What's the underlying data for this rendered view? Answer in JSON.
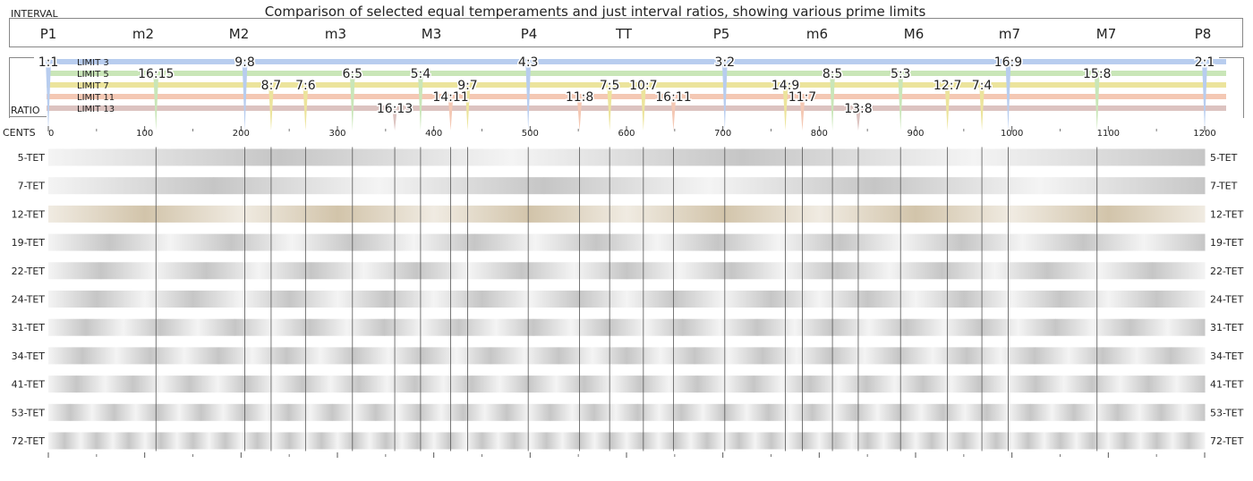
{
  "chart_data": {
    "type": "chart",
    "title": "Comparison of selected equal temperaments and just interval ratios, showing various prime limits",
    "interval_header": "INTERVAL",
    "ratio_header": "RATIO",
    "cents_header": "CENTS",
    "x_range": [
      0,
      1200
    ],
    "cents_ticks": [
      0,
      100,
      200,
      300,
      400,
      500,
      600,
      700,
      800,
      900,
      1000,
      1100,
      1200
    ],
    "intervals": [
      {
        "label": "P1",
        "cents": 0
      },
      {
        "label": "m2",
        "cents": 100
      },
      {
        "label": "M2",
        "cents": 200
      },
      {
        "label": "m3",
        "cents": 300
      },
      {
        "label": "M3",
        "cents": 400
      },
      {
        "label": "P4",
        "cents": 500
      },
      {
        "label": "TT",
        "cents": 600
      },
      {
        "label": "P5",
        "cents": 700
      },
      {
        "label": "m6",
        "cents": 800
      },
      {
        "label": "M6",
        "cents": 900
      },
      {
        "label": "m7",
        "cents": 1000
      },
      {
        "label": "M7",
        "cents": 1100
      },
      {
        "label": "P8",
        "cents": 1200
      }
    ],
    "limits": [
      {
        "name": "LIMIT 3",
        "color": "#b8cdef"
      },
      {
        "name": "LIMIT 5",
        "color": "#c9e6b8"
      },
      {
        "name": "LIMIT 7",
        "color": "#ece49c"
      },
      {
        "name": "LIMIT 11",
        "color": "#f4c8b4"
      },
      {
        "name": "LIMIT 13",
        "color": "#dcc3c0"
      }
    ],
    "ratios": [
      {
        "label": "1:1",
        "cents": 0,
        "limit": 0
      },
      {
        "label": "9:8",
        "cents": 203.9,
        "limit": 0
      },
      {
        "label": "4:3",
        "cents": 498.0,
        "limit": 0
      },
      {
        "label": "3:2",
        "cents": 702.0,
        "limit": 0
      },
      {
        "label": "16:9",
        "cents": 996.1,
        "limit": 0
      },
      {
        "label": "2:1",
        "cents": 1200,
        "limit": 0
      },
      {
        "label": "16:15",
        "cents": 111.7,
        "limit": 1
      },
      {
        "label": "6:5",
        "cents": 315.6,
        "limit": 1
      },
      {
        "label": "5:4",
        "cents": 386.3,
        "limit": 1
      },
      {
        "label": "8:5",
        "cents": 813.7,
        "limit": 1
      },
      {
        "label": "5:3",
        "cents": 884.4,
        "limit": 1
      },
      {
        "label": "15:8",
        "cents": 1088.3,
        "limit": 1
      },
      {
        "label": "8:7",
        "cents": 231.2,
        "limit": 2
      },
      {
        "label": "7:6",
        "cents": 266.9,
        "limit": 2
      },
      {
        "label": "9:7",
        "cents": 435.1,
        "limit": 2
      },
      {
        "label": "7:5",
        "cents": 582.5,
        "limit": 2
      },
      {
        "label": "10:7",
        "cents": 617.5,
        "limit": 2
      },
      {
        "label": "14:9",
        "cents": 764.9,
        "limit": 2
      },
      {
        "label": "12:7",
        "cents": 933.1,
        "limit": 2
      },
      {
        "label": "7:4",
        "cents": 968.8,
        "limit": 2
      },
      {
        "label": "14:11",
        "cents": 417.5,
        "limit": 3
      },
      {
        "label": "11:8",
        "cents": 551.3,
        "limit": 3
      },
      {
        "label": "16:11",
        "cents": 648.7,
        "limit": 3
      },
      {
        "label": "11:7",
        "cents": 782.5,
        "limit": 3
      },
      {
        "label": "16:13",
        "cents": 359.5,
        "limit": 4
      },
      {
        "label": "13:8",
        "cents": 840.5,
        "limit": 4
      }
    ],
    "temperaments": [
      {
        "label": "5-TET",
        "divisions": 5,
        "highlight": false
      },
      {
        "label": "7-TET",
        "divisions": 7,
        "highlight": false
      },
      {
        "label": "12-TET",
        "divisions": 12,
        "highlight": true
      },
      {
        "label": "19-TET",
        "divisions": 19,
        "highlight": false
      },
      {
        "label": "22-TET",
        "divisions": 22,
        "highlight": false
      },
      {
        "label": "24-TET",
        "divisions": 24,
        "highlight": false
      },
      {
        "label": "31-TET",
        "divisions": 31,
        "highlight": false
      },
      {
        "label": "34-TET",
        "divisions": 34,
        "highlight": false
      },
      {
        "label": "41-TET",
        "divisions": 41,
        "highlight": false
      },
      {
        "label": "53-TET",
        "divisions": 53,
        "highlight": false
      },
      {
        "label": "72-TET",
        "divisions": 72,
        "highlight": false
      }
    ],
    "colors": {
      "band_light": "#f4f4f4",
      "band_dark": "#c6c6c6",
      "band12_light": "#f0ebe2",
      "band12_dark": "#d2c4aa",
      "frame": "#888888",
      "guide_line": "#555555"
    }
  }
}
